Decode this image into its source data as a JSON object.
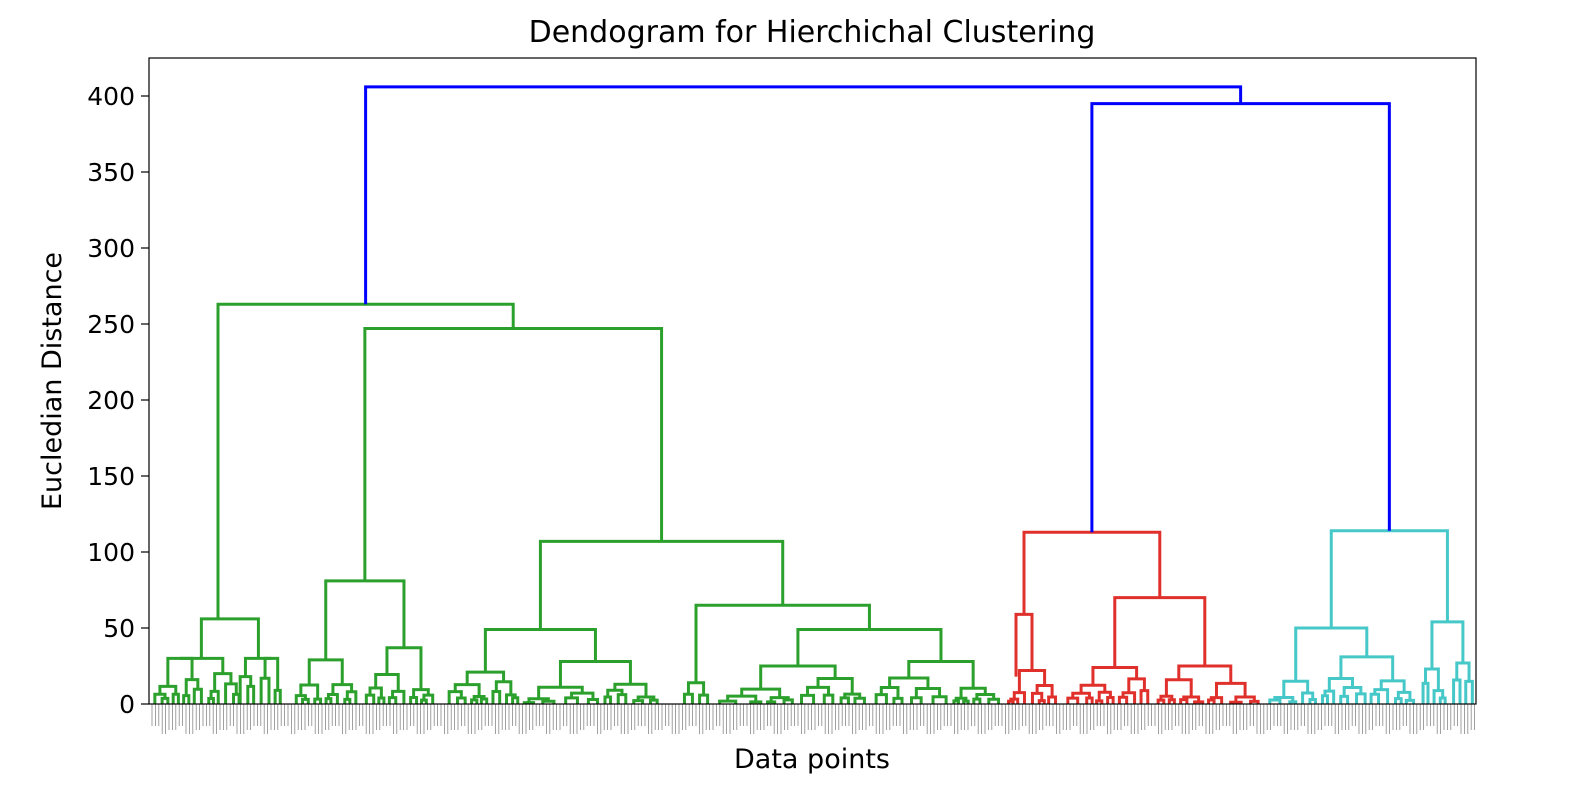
{
  "chart_data": {
    "type": "dendrogram",
    "title": "Dendogram for Hierchichal Clustering",
    "xlabel": "Data points",
    "ylabel": "Eucledian Distance",
    "ylim": [
      0,
      425
    ],
    "yticks": [
      0,
      50,
      100,
      150,
      200,
      250,
      300,
      350,
      400
    ],
    "grid": false,
    "colors": {
      "top": "#0000ff",
      "cluster_1": "#2ca02c",
      "cluster_2": "#e0302c",
      "cluster_3": "#46c8c8"
    },
    "merges_top": [
      {
        "left": "cluster_1",
        "right": "clusters_2_3",
        "height": 406
      },
      {
        "left": "cluster_2",
        "right": "cluster_3",
        "height": 395
      }
    ],
    "clusters": [
      {
        "name": "",
        "color": "cluster_1",
        "root_height": 263,
        "merge_heights": [
          263,
          247,
          107,
          81,
          65,
          56,
          49,
          37,
          31,
          29,
          28,
          21
        ]
      },
      {
        "name": "",
        "color": "cluster_2",
        "root_height": 113,
        "merge_heights": [
          113,
          70,
          59,
          50,
          25,
          24,
          18
        ]
      },
      {
        "name": "",
        "color": "cluster_3",
        "root_height": 114,
        "merge_heights": [
          114,
          54,
          50,
          31,
          27,
          23
        ]
      }
    ]
  }
}
